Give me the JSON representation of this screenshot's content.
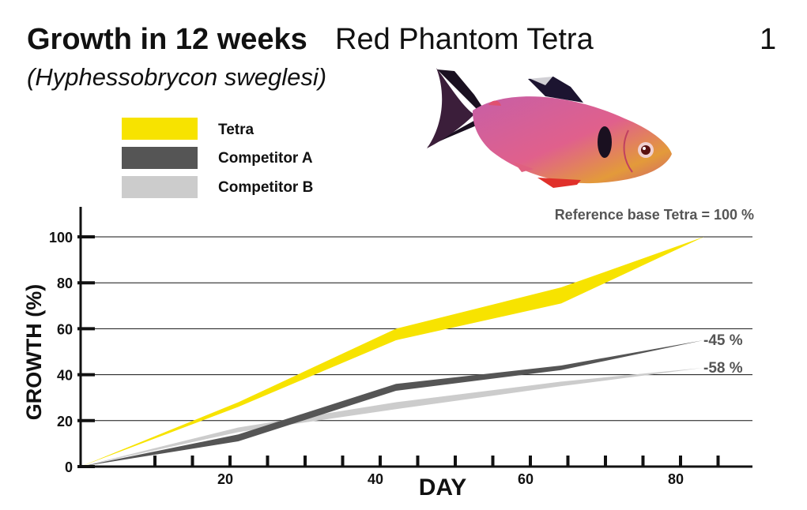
{
  "header": {
    "title_bold": "Growth in 12 weeks",
    "title_light": "Red Phantom Tetra",
    "subtitle": "(Hyphessobrycon sweglesi)",
    "page_number": "1"
  },
  "colors": {
    "tetra": "#f7e300",
    "competitor_a": "#555555",
    "competitor_b": "#cccccc",
    "axis": "#111111",
    "grid": "#111111",
    "annotation": "#555555"
  },
  "chart_data": {
    "type": "area",
    "title": "Growth in 12 weeks",
    "xlabel": "DAY",
    "ylabel": "GROWTH (%)",
    "xlim": [
      0,
      90
    ],
    "ylim": [
      0,
      100
    ],
    "x_ticks": [
      20,
      40,
      60,
      80
    ],
    "y_ticks": [
      0,
      20,
      40,
      60,
      80,
      100
    ],
    "grid": "horizontal",
    "legend_position": "top-left",
    "note": "Reference base Tetra = 100 %",
    "series": [
      {
        "name": "Tetra",
        "color": "#f7e300",
        "upper": [
          [
            0,
            0
          ],
          [
            21,
            28
          ],
          [
            42,
            60
          ],
          [
            64,
            78
          ],
          [
            83,
            100
          ]
        ],
        "lower": [
          [
            0,
            0
          ],
          [
            21,
            26
          ],
          [
            42,
            55
          ],
          [
            64,
            71
          ],
          [
            83,
            100
          ]
        ]
      },
      {
        "name": "Competitor A",
        "color": "#555555",
        "upper": [
          [
            0,
            0
          ],
          [
            21,
            14
          ],
          [
            42,
            36
          ],
          [
            64,
            44
          ],
          [
            83,
            55
          ]
        ],
        "lower": [
          [
            0,
            0
          ],
          [
            21,
            11
          ],
          [
            42,
            33
          ],
          [
            64,
            42
          ],
          [
            83,
            55
          ]
        ],
        "end_label": "-45 %"
      },
      {
        "name": "Competitor B",
        "color": "#cccccc",
        "upper": [
          [
            0,
            0
          ],
          [
            21,
            17
          ],
          [
            42,
            28
          ],
          [
            64,
            37
          ],
          [
            83,
            43
          ]
        ],
        "lower": [
          [
            0,
            0
          ],
          [
            21,
            15
          ],
          [
            42,
            25
          ],
          [
            64,
            35
          ],
          [
            83,
            43
          ]
        ],
        "end_label": "-58 %"
      }
    ]
  }
}
